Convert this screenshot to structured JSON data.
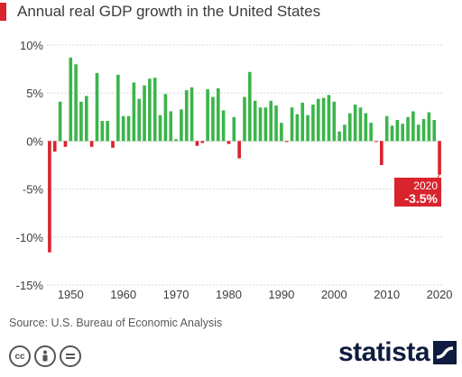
{
  "title": "Annual real GDP growth in the United States",
  "source": "Source: U.S. Bureau of Economic Analysis",
  "brand": "statista",
  "license_icons": [
    "cc-icon",
    "attribution-icon",
    "no-derivatives-icon"
  ],
  "colors": {
    "positive": "#3bb54a",
    "negative": "#d9232d",
    "accent": "#d9232d",
    "brand": "#0f1c3f",
    "grid": "#d8d8d8"
  },
  "chart_data": {
    "type": "bar",
    "title": "Annual real GDP growth in the United States",
    "xlabel": "",
    "ylabel": "",
    "ylim": [
      -15,
      10
    ],
    "y_ticks": [
      10,
      5,
      0,
      -5,
      -10,
      -15
    ],
    "y_tick_labels": [
      "10%",
      "5%",
      "0%",
      "-5%",
      "-10%",
      "-15%"
    ],
    "x_ticks": [
      1950,
      1960,
      1970,
      1980,
      1990,
      2000,
      2010,
      2020
    ],
    "x_tick_labels": [
      "1950",
      "1960",
      "1970",
      "1980",
      "1990",
      "2000",
      "2010",
      "2020"
    ],
    "years": [
      1946,
      1947,
      1948,
      1949,
      1950,
      1951,
      1952,
      1953,
      1954,
      1955,
      1956,
      1957,
      1958,
      1959,
      1960,
      1961,
      1962,
      1963,
      1964,
      1965,
      1966,
      1967,
      1968,
      1969,
      1970,
      1971,
      1972,
      1973,
      1974,
      1975,
      1976,
      1977,
      1978,
      1979,
      1980,
      1981,
      1982,
      1983,
      1984,
      1985,
      1986,
      1987,
      1988,
      1989,
      1990,
      1991,
      1992,
      1993,
      1994,
      1995,
      1996,
      1997,
      1998,
      1999,
      2000,
      2001,
      2002,
      2003,
      2004,
      2005,
      2006,
      2007,
      2008,
      2009,
      2010,
      2011,
      2012,
      2013,
      2014,
      2015,
      2016,
      2017,
      2018,
      2019,
      2020
    ],
    "values": [
      -11.6,
      -1.1,
      4.1,
      -0.6,
      8.7,
      8.0,
      4.1,
      4.7,
      -0.6,
      7.1,
      2.1,
      2.1,
      -0.7,
      6.9,
      2.6,
      2.6,
      6.1,
      4.4,
      5.8,
      6.5,
      6.6,
      2.7,
      4.9,
      3.1,
      0.2,
      3.3,
      5.3,
      5.6,
      -0.5,
      -0.2,
      5.4,
      4.6,
      5.5,
      3.2,
      -0.3,
      2.5,
      -1.8,
      4.6,
      7.2,
      4.2,
      3.5,
      3.5,
      4.2,
      3.7,
      1.9,
      -0.1,
      3.5,
      2.8,
      4.0,
      2.7,
      3.8,
      4.4,
      4.5,
      4.8,
      4.1,
      1.0,
      1.7,
      2.9,
      3.8,
      3.5,
      2.9,
      1.9,
      -0.1,
      -2.5,
      2.6,
      1.6,
      2.2,
      1.8,
      2.5,
      3.1,
      1.7,
      2.3,
      3.0,
      2.2,
      -3.5
    ],
    "annotation": {
      "year": "2020",
      "value_label": "-3.5%"
    },
    "grid": true
  }
}
